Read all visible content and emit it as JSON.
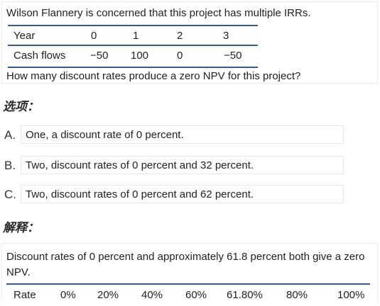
{
  "question": {
    "intro": "Wilson Flannery is concerned that this project has multiple IRRs.",
    "table": {
      "header": [
        "Year",
        "0",
        "1",
        "2",
        "3"
      ],
      "row": [
        "Cash flows",
        "−50",
        "100",
        "0",
        "−50"
      ]
    },
    "prompt": "How many discount rates produce a zero NPV for this project?"
  },
  "options_label": "选项：",
  "options": [
    {
      "letter": "A.",
      "text": "One, a discount rate of 0 percent."
    },
    {
      "letter": "B.",
      "text": "Two, discount rates of 0 percent and 32 percent."
    },
    {
      "letter": "C.",
      "text": "Two, discount rates of 0 percent and 62 percent."
    }
  ],
  "explanation_label": "解释：",
  "explanation": {
    "text": "Discount rates of 0 percent and approximately 61.8 percent both give a zero NPV.",
    "rate_row": [
      "Rate",
      "0%",
      "20%",
      "40%",
      "60%",
      "61.80%",
      "80%",
      "100%"
    ]
  }
}
